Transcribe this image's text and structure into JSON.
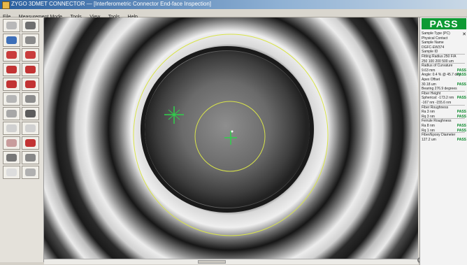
{
  "window": {
    "title": "ZYGO 3DMET CONNECTOR — [Interferometric Connector End-face Inspection]"
  },
  "menu": [
    "File",
    "Measurement Mode",
    "Tools",
    "View",
    "Tools",
    "Help"
  ],
  "toolbar": {
    "buttons": [
      {
        "name": "live-button",
        "caption": "",
        "color": "#b8b8b8"
      },
      {
        "name": "capture-button",
        "caption": "",
        "color": "#6e6e6e"
      },
      {
        "name": "zoom-button",
        "caption": "",
        "color": "#3d6fb8"
      },
      {
        "name": "focus-button",
        "caption": "",
        "color": "#8a8a8a"
      },
      {
        "name": "fiber-a-button",
        "caption": "",
        "color": "#c93c3c"
      },
      {
        "name": "fiber-b-button",
        "caption": "",
        "color": "#c93c3c"
      },
      {
        "name": "analysis-a-button",
        "caption": "",
        "color": "#c23333"
      },
      {
        "name": "analysis-b-button",
        "caption": "",
        "color": "#c23333"
      },
      {
        "name": "tool-a-button",
        "caption": "",
        "color": "#c23333"
      },
      {
        "name": "tool-b-button",
        "caption": "",
        "color": "#c23333"
      },
      {
        "name": "profile-button",
        "caption": "",
        "color": "#b5b5b5"
      },
      {
        "name": "grid-button",
        "caption": "",
        "color": "#8c8c8c"
      },
      {
        "name": "settings-button",
        "caption": "",
        "color": "#a7a7a7"
      },
      {
        "name": "report-button",
        "caption": "",
        "color": "#5c5c5c"
      },
      {
        "name": "disabled-a-button",
        "caption": "",
        "color": "#d0d0d0"
      },
      {
        "name": "disabled-b-button",
        "caption": "",
        "color": "#d0d0d0"
      },
      {
        "name": "export-button",
        "caption": "",
        "color": "#c89c9c"
      },
      {
        "name": "mark-button",
        "caption": "",
        "color": "#c23333"
      },
      {
        "name": "print-button",
        "caption": "",
        "color": "#777777"
      },
      {
        "name": "save-button",
        "caption": "",
        "color": "#888888"
      },
      {
        "name": "help-button",
        "caption": "",
        "color": "#dddddd"
      },
      {
        "name": "exit-button",
        "caption": "",
        "color": "#b0b0b0"
      }
    ]
  },
  "panel": {
    "status": "PASS",
    "status_color": "#0d9a33",
    "lines": [
      {
        "text": "Sample Type (PC)",
        "badge": ""
      },
      {
        "text": "Physical Contact",
        "badge": ""
      },
      {
        "text": "Sample Name",
        "badge": ""
      },
      {
        "text": "DGFC-EW374",
        "badge": ""
      },
      {
        "text": "Sample ID",
        "badge": ""
      },
      {
        "text": "Fitting Radius 250 F/A",
        "badge": ""
      },
      {
        "text": "250  100  200  500 um",
        "badge": ""
      },
      {
        "text": "Radius of Curvature",
        "badge": ""
      },
      {
        "text": "9.63 mm",
        "badge": "PASS"
      },
      {
        "text": "Angle: 0.4 %  @ 45.7 deg",
        "badge": "PASS"
      },
      {
        "text": "Apex Offset",
        "badge": ""
      },
      {
        "text": "30.18 um",
        "badge": "PASS"
      },
      {
        "text": "Bearing 276.9 degrees",
        "badge": ""
      },
      {
        "text": "Fiber Height",
        "badge": ""
      },
      {
        "text": "Spherical: -173.2 nm",
        "badge": "PASS"
      },
      {
        "text": "-167 nm  -155.6 nm",
        "badge": ""
      },
      {
        "text": "Fiber Roughness",
        "badge": ""
      },
      {
        "text": "Ra        3 nm",
        "badge": "PASS"
      },
      {
        "text": "Rq        3 nm",
        "badge": "PASS"
      },
      {
        "text": "Ferrule Roughness",
        "badge": ""
      },
      {
        "text": "Ra        8 nm",
        "badge": "PASS"
      },
      {
        "text": "Rq        1 nm",
        "badge": "PASS"
      },
      {
        "text": "Fiber/Epoxy Diameter",
        "badge": ""
      },
      {
        "text": "127.2 um",
        "badge": "PASS"
      }
    ]
  },
  "viewer": {
    "overlay_color": "#d8e34a",
    "marker_color": "#2fd14a"
  }
}
